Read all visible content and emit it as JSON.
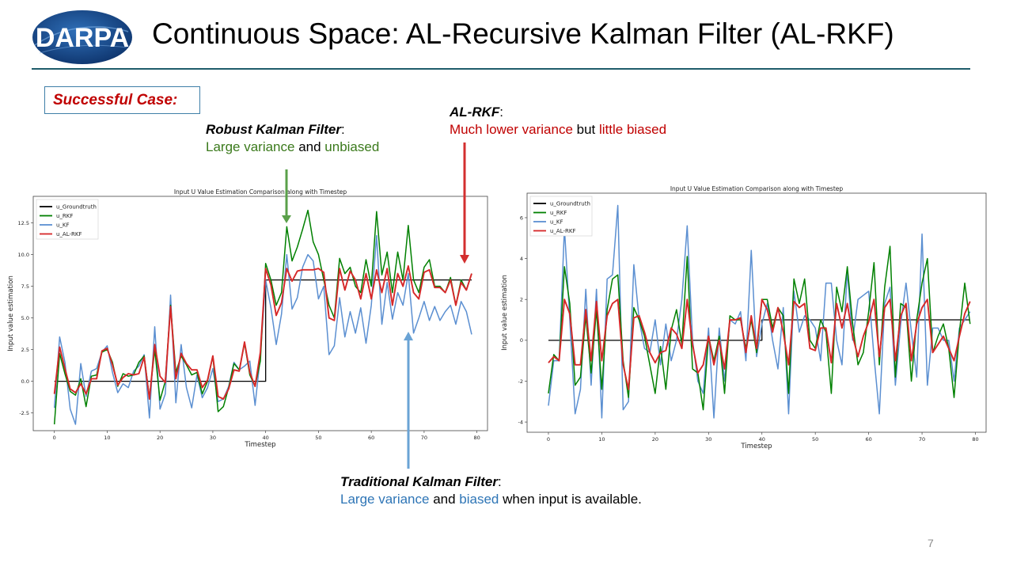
{
  "logo_text": "DARPA",
  "title": "Continuous Space: AL-Recursive Kalman Filter (AL-RKF)",
  "case_label": "Successful Case:",
  "annotations": {
    "rkf": {
      "head": "Robust Kalman Filter",
      "colon": ":",
      "p1": "Large variance",
      "p2": " and ",
      "p3": "unbiased"
    },
    "alrkf": {
      "head": "AL-RKF",
      "colon": ":",
      "p1": "Much lower variance",
      "p2": " but ",
      "p3": "little biased"
    },
    "kf": {
      "head": "Traditional Kalman Filter",
      "colon": ":",
      "p1": "Large variance",
      "p2": " and ",
      "p3": "biased",
      "p4": " when input is available."
    }
  },
  "page_number": "7",
  "colors": {
    "groundtruth": "#000000",
    "rkf": "#008000",
    "kf": "#5b8fd1",
    "alrkf": "#d62728",
    "arrow_green": "#5aa04a",
    "arrow_red": "#d32f2f",
    "arrow_blue": "#6aa3d5"
  },
  "chart_data": [
    {
      "type": "line",
      "title": "Input U Value Estimation Comparison along with Timestep",
      "xlabel": "Timestep",
      "ylabel": "Input value estimation",
      "xlim": [
        -4,
        82
      ],
      "ylim": [
        -3.9,
        14.6
      ],
      "xticks": [
        0,
        10,
        20,
        30,
        40,
        50,
        60,
        70,
        80
      ],
      "yticks": [
        -2.5,
        0.0,
        2.5,
        5.0,
        7.5,
        10.0,
        12.5
      ],
      "ytick_labels": [
        "-2.5",
        "0.0",
        "2.5",
        "5.0",
        "7.5",
        "10.0",
        "12.5"
      ],
      "legend": "top-left",
      "series": [
        {
          "name": "u_Groundtruth",
          "key": "groundtruth",
          "values": [
            0,
            0,
            0,
            0,
            0,
            0,
            0,
            0,
            0,
            0,
            0,
            0,
            0,
            0,
            0,
            0,
            0,
            0,
            0,
            0,
            0,
            0,
            0,
            0,
            0,
            0,
            0,
            0,
            0,
            0,
            0,
            0,
            0,
            0,
            0,
            0,
            0,
            0,
            0,
            0,
            8,
            8,
            8,
            8,
            8,
            8,
            8,
            8,
            8,
            8,
            8,
            8,
            8,
            8,
            8,
            8,
            8,
            8,
            8,
            8,
            8,
            8,
            8,
            8,
            8,
            8,
            8,
            8,
            8,
            8,
            8,
            8,
            8,
            8,
            8,
            8,
            8,
            8,
            8,
            8
          ]
        },
        {
          "name": "u_RKF",
          "key": "rkf",
          "values": [
            -3.4,
            2.2,
            0.6,
            -0.8,
            -1.1,
            0.2,
            -2.0,
            0.4,
            0.5,
            2.3,
            2.5,
            1.5,
            -0.4,
            0.6,
            0.4,
            0.5,
            1.5,
            2.0,
            -1.3,
            2.5,
            -1.5,
            0.0,
            6.0,
            0.7,
            2.0,
            1.3,
            0.5,
            0.7,
            -1.0,
            0.0,
            2.0,
            -2.4,
            -2.0,
            -0.5,
            1.4,
            0.9,
            3.0,
            0.5,
            -0.4,
            1.6,
            9.3,
            8.0,
            6.0,
            7.0,
            12.2,
            9.5,
            10.6,
            12.0,
            13.5,
            11.0,
            10.0,
            8.0,
            6.0,
            5.0,
            9.7,
            8.5,
            9.0,
            7.5,
            7.0,
            9.6,
            7.5,
            13.4,
            8.4,
            10.2,
            7.0,
            10.2,
            8.0,
            12.3,
            8.0,
            7.0,
            9.0,
            9.6,
            7.5,
            7.5,
            7.0,
            8.2,
            6.0,
            8.0,
            7.2,
            8.5
          ]
        },
        {
          "name": "u_KF",
          "key": "kf",
          "values": [
            -2.1,
            3.5,
            1.5,
            -2.2,
            -3.4,
            1.4,
            -1.2,
            0.8,
            1.0,
            2.3,
            2.8,
            0.7,
            -0.9,
            -0.2,
            -0.5,
            0.8,
            1.2,
            2.1,
            -2.9,
            4.3,
            -2.2,
            -1.0,
            6.8,
            -1.7,
            2.9,
            -0.5,
            -2.1,
            0.5,
            -1.3,
            -0.5,
            1.0,
            -1.6,
            -1.4,
            -0.4,
            1.5,
            0.9,
            1.2,
            1.6,
            -1.9,
            2.0,
            8.0,
            5.8,
            2.9,
            5.3,
            10.0,
            5.7,
            6.6,
            9.0,
            10.0,
            9.5,
            6.5,
            7.5,
            2.1,
            2.8,
            6.6,
            3.5,
            5.5,
            3.8,
            5.8,
            3.0,
            6.0,
            11.5,
            4.5,
            7.8,
            4.9,
            7.0,
            6.0,
            8.5,
            3.8,
            5.0,
            6.3,
            4.8,
            5.9,
            4.8,
            5.5,
            6.0,
            4.5,
            6.3,
            5.5,
            3.7
          ]
        },
        {
          "name": "u_AL-RKF",
          "key": "alrkf",
          "values": [
            -1.0,
            2.7,
            1.0,
            -0.6,
            -0.9,
            -0.2,
            -1.0,
            0.2,
            0.2,
            2.4,
            2.6,
            1.3,
            -0.3,
            0.3,
            0.6,
            0.5,
            0.6,
            1.9,
            -1.4,
            2.9,
            0.4,
            -0.1,
            5.9,
            0.2,
            2.2,
            1.4,
            0.9,
            0.9,
            -0.5,
            0.1,
            2.0,
            -1.2,
            -1.4,
            -0.6,
            0.9,
            0.8,
            3.1,
            0.7,
            -0.4,
            2.3,
            8.9,
            7.6,
            5.2,
            6.2,
            8.9,
            7.9,
            8.7,
            8.8,
            8.8,
            8.8,
            8.9,
            8.6,
            5.0,
            4.8,
            8.9,
            7.2,
            8.7,
            8.0,
            6.5,
            8.5,
            6.5,
            8.8,
            7.0,
            8.9,
            6.0,
            8.5,
            7.5,
            9.1,
            7.0,
            6.5,
            8.6,
            8.8,
            7.4,
            7.4,
            7.0,
            8.0,
            6.0,
            7.8,
            7.2,
            8.5
          ]
        }
      ]
    },
    {
      "type": "line",
      "title": "Input U Value Estimation Comparison along with Timestep",
      "xlabel": "Timestep",
      "ylabel": "Input value estimation",
      "xlim": [
        -4,
        82
      ],
      "ylim": [
        -4.5,
        7.2
      ],
      "xticks": [
        0,
        10,
        20,
        30,
        40,
        50,
        60,
        70,
        80
      ],
      "yticks": [
        -4,
        -2,
        0,
        2,
        4,
        6
      ],
      "ytick_labels": [
        "-4",
        "-2",
        "0",
        "2",
        "4",
        "6"
      ],
      "legend": "top-left",
      "series": [
        {
          "name": "u_Groundtruth",
          "key": "groundtruth",
          "values": [
            0,
            0,
            0,
            0,
            0,
            0,
            0,
            0,
            0,
            0,
            0,
            0,
            0,
            0,
            0,
            0,
            0,
            0,
            0,
            0,
            0,
            0,
            0,
            0,
            0,
            0,
            0,
            0,
            0,
            0,
            0,
            0,
            0,
            0,
            0,
            0,
            0,
            0,
            0,
            0,
            1,
            1,
            1,
            1,
            1,
            1,
            1,
            1,
            1,
            1,
            1,
            1,
            1,
            1,
            1,
            1,
            1,
            1,
            1,
            1,
            1,
            1,
            1,
            1,
            1,
            1,
            1,
            1,
            1,
            1,
            1,
            1,
            1,
            1,
            1,
            1,
            1,
            1,
            1,
            1
          ]
        },
        {
          "name": "u_RKF",
          "key": "rkf",
          "values": [
            -2.6,
            -0.7,
            -1.0,
            3.6,
            1.8,
            -2.2,
            -1.8,
            1.2,
            -1.6,
            1.5,
            -2.4,
            1.5,
            3.0,
            3.2,
            -1.0,
            -2.8,
            1.6,
            1.0,
            0.2,
            -1.2,
            -2.6,
            -0.3,
            -2.4,
            0.5,
            1.5,
            -0.2,
            4.1,
            -1.4,
            -1.6,
            -3.4,
            0.2,
            -1.0,
            0.2,
            -2.6,
            1.2,
            1.0,
            1.0,
            -0.4,
            1.0,
            -0.6,
            2.0,
            2.0,
            0.6,
            1.6,
            1.2,
            -2.6,
            3.0,
            1.8,
            3.0,
            0.0,
            -0.4,
            1.0,
            0.4,
            -2.6,
            2.6,
            1.4,
            3.6,
            0.8,
            -1.2,
            -0.6,
            1.4,
            3.8,
            -1.2,
            2.6,
            4.6,
            -1.8,
            1.8,
            1.6,
            -2.0,
            1.0,
            2.8,
            4.0,
            -0.6,
            0.2,
            0.8,
            -0.4,
            -2.8,
            0.4,
            2.8,
            0.8
          ]
        },
        {
          "name": "u_KF",
          "key": "kf",
          "values": [
            -3.2,
            -1.0,
            -1.0,
            5.5,
            1.0,
            -3.6,
            -2.4,
            2.5,
            -2.2,
            2.5,
            -3.8,
            3.0,
            3.2,
            6.6,
            -3.4,
            -3.0,
            3.7,
            1.0,
            -0.4,
            -0.6,
            1.0,
            -1.2,
            0.8,
            -1.0,
            0.0,
            2.0,
            5.6,
            0.0,
            -2.0,
            -2.6,
            0.6,
            -3.8,
            0.6,
            -2.0,
            1.0,
            0.8,
            1.4,
            -1.0,
            4.4,
            -0.8,
            0.8,
            1.8,
            0.0,
            -1.4,
            1.6,
            -3.6,
            2.4,
            0.4,
            1.2,
            1.0,
            0.6,
            -1.0,
            2.8,
            2.8,
            0.0,
            -1.2,
            3.4,
            0.0,
            2.0,
            2.2,
            2.4,
            -0.8,
            -3.6,
            1.8,
            2.6,
            -2.2,
            0.8,
            2.8,
            0.4,
            -1.8,
            5.2,
            -2.2,
            0.6,
            0.6,
            0.0,
            0.0,
            -2.0,
            0.6,
            1.0,
            1.4
          ]
        },
        {
          "name": "u_AL-RKF",
          "key": "alrkf",
          "values": [
            -1.1,
            -0.8,
            -1.0,
            2.0,
            1.3,
            -1.2,
            -1.2,
            1.5,
            -1.0,
            1.9,
            -1.0,
            1.2,
            1.8,
            2.0,
            -1.2,
            -2.4,
            1.1,
            1.2,
            0.4,
            -0.6,
            -1.1,
            -0.6,
            -0.5,
            0.6,
            0.3,
            -0.4,
            2.0,
            -0.2,
            -1.6,
            -1.2,
            0.2,
            -1.2,
            0.0,
            -1.4,
            1.0,
            1.0,
            1.1,
            -0.6,
            1.2,
            -0.4,
            2.0,
            1.5,
            0.4,
            1.6,
            0.4,
            -1.2,
            1.9,
            1.6,
            1.8,
            -0.4,
            -0.5,
            0.6,
            0.6,
            -1.1,
            1.8,
            0.6,
            1.8,
            0.2,
            -0.8,
            0.2,
            0.9,
            2.0,
            -0.8,
            1.6,
            2.0,
            -1.0,
            1.2,
            1.8,
            -1.0,
            0.8,
            1.6,
            2.0,
            -0.6,
            -0.2,
            0.2,
            -0.4,
            -1.0,
            0.2,
            1.3,
            1.9
          ]
        }
      ]
    }
  ]
}
